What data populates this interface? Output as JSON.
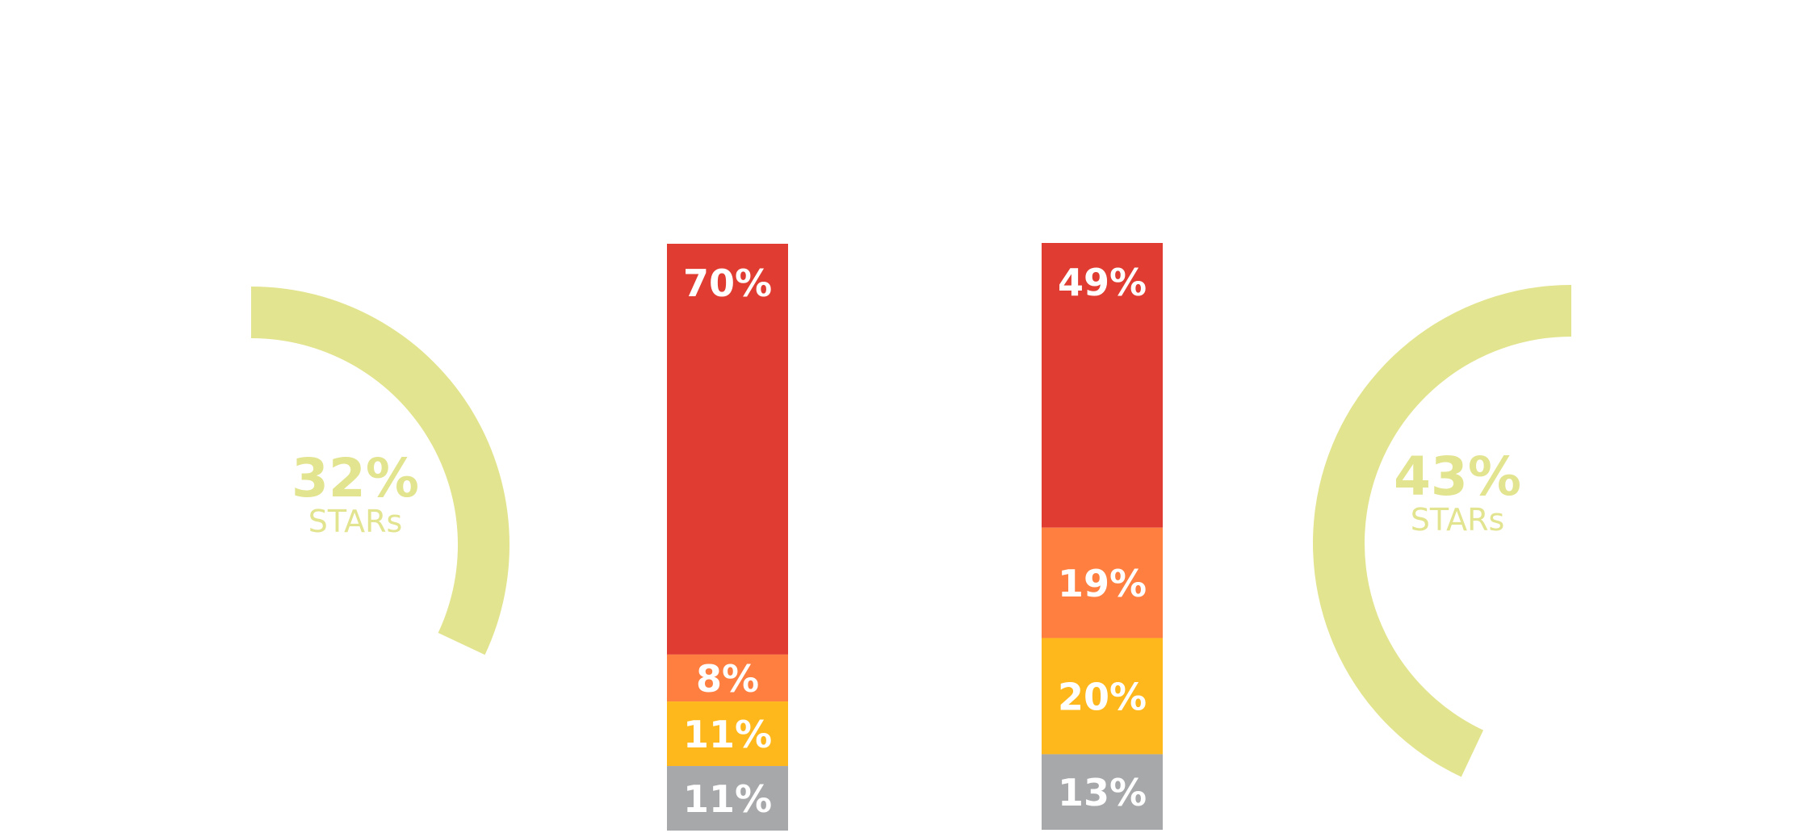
{
  "chart_data": [
    {
      "type": "gauge",
      "value": 32,
      "unit": "%",
      "value_label": "32%",
      "sublabel": "STARs",
      "color": "#e3e48f"
    },
    {
      "type": "stacked-bar",
      "unit": "%",
      "segments": [
        {
          "value": 70,
          "label": "70%",
          "color": "#e03c31"
        },
        {
          "value": 8,
          "label": "8%",
          "color": "#ff7f41"
        },
        {
          "value": 11,
          "label": "11%",
          "color": "#ffb81c"
        },
        {
          "value": 11,
          "label": "11%",
          "color": "#a7a8aa"
        }
      ]
    },
    {
      "type": "stacked-bar",
      "unit": "%",
      "segments": [
        {
          "value": 49,
          "label": "49%",
          "color": "#e03c31"
        },
        {
          "value": 19,
          "label": "19%",
          "color": "#ff7f41"
        },
        {
          "value": 20,
          "label": "20%",
          "color": "#ffb81c"
        },
        {
          "value": 13,
          "label": "13%",
          "color": "#a7a8aa"
        }
      ]
    },
    {
      "type": "gauge",
      "value": 43,
      "unit": "%",
      "value_label": "43%",
      "sublabel": "STARs",
      "color": "#e3e48f"
    }
  ]
}
